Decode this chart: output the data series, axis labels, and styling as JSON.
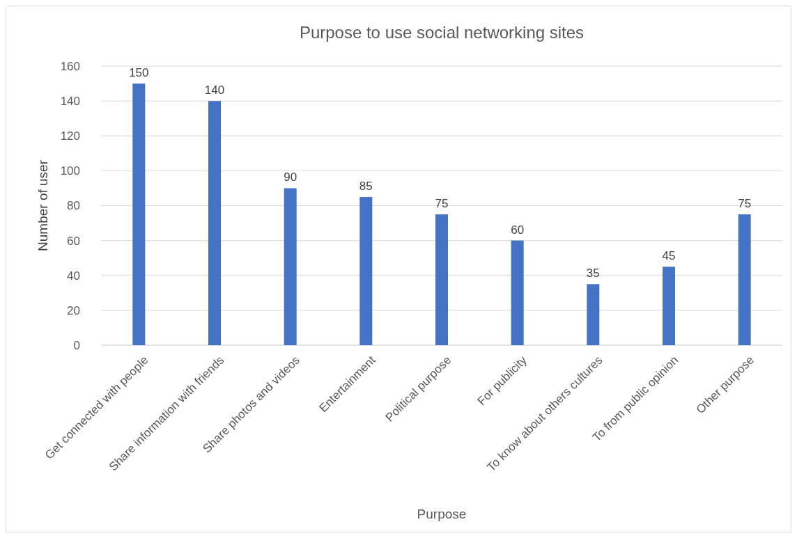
{
  "chart_data": {
    "type": "bar",
    "title": "Purpose to use social networking sites",
    "xlabel": "Purpose",
    "ylabel": "Number of user",
    "categories": [
      "Get connected with people",
      "Share information with friends",
      "Share photos and videos",
      "Entertainment",
      "Political purpose",
      "For publicity",
      "To know about others cultures",
      "To from public opinion",
      "Other purpose"
    ],
    "values": [
      150,
      140,
      90,
      85,
      75,
      60,
      35,
      45,
      75
    ],
    "color": "#4472c4",
    "ylim": [
      0,
      160
    ],
    "yticks": [
      0,
      20,
      40,
      60,
      80,
      100,
      120,
      140,
      160
    ],
    "grid": "y",
    "data_labels": true
  }
}
